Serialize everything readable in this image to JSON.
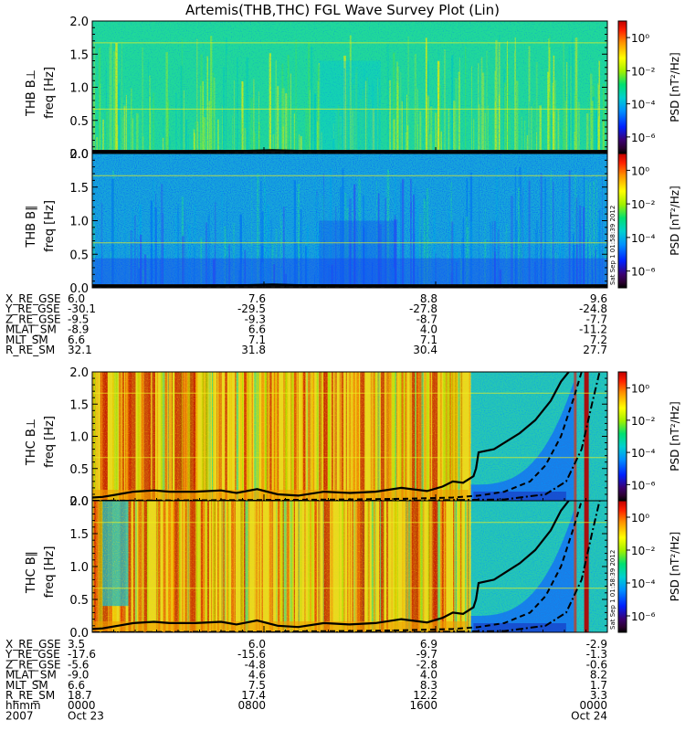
{
  "chart_data": {
    "type": "spectrogram",
    "title": "Artemis(THB,THC) FGL Wave Survey Plot (Lin)",
    "stamp": "Sat Sep  1 01:58:39 2012",
    "panels": [
      {
        "id": "thb-bperp",
        "label": "THB B⊥",
        "ylabel": "freq [Hz]",
        "ylim": [
          0,
          2.0
        ],
        "yticks": [
          "0.0",
          "0.5",
          "1.0",
          "1.5",
          "2.0"
        ],
        "cblabel": "PSD [nT²/Hz]",
        "cbticks": [
          "10⁰",
          "10⁻²",
          "10⁻⁴",
          "10⁻⁶"
        ],
        "cbrange": [
          -7,
          1
        ],
        "style": "thb",
        "gridfreqs": [
          0.67,
          1.67
        ]
      },
      {
        "id": "thb-bpar",
        "label": "THB B∥",
        "ylabel": "freq [Hz]",
        "ylim": [
          0,
          2.0
        ],
        "yticks": [
          "0.0",
          "0.5",
          "1.0",
          "1.5",
          "2.0"
        ],
        "cblabel": "PSD [nT²/Hz]",
        "cbticks": [
          "10⁰",
          "10⁻²",
          "10⁻⁴",
          "10⁻⁶"
        ],
        "cbrange": [
          -7,
          1
        ],
        "style": "thb2",
        "gridfreqs": [
          0.67,
          1.67
        ]
      },
      {
        "id": "thc-bperp",
        "label": "THC B⊥",
        "ylabel": "freq [Hz]",
        "ylim": [
          0,
          2.0
        ],
        "yticks": [
          "0.0",
          "0.5",
          "1.0",
          "1.5",
          "2.0"
        ],
        "cblabel": "PSD [nT²/Hz]",
        "cbticks": [
          "10⁰",
          "10⁻²",
          "10⁻⁴",
          "10⁻⁶"
        ],
        "cbrange": [
          -7,
          1
        ],
        "style": "thc",
        "gridfreqs": [
          0.67,
          1.67
        ]
      },
      {
        "id": "thc-bpar",
        "label": "THC B∥",
        "ylabel": "freq [Hz]",
        "ylim": [
          0,
          2.0
        ],
        "yticks": [
          "0.0",
          "0.5",
          "1.0",
          "1.5",
          "2.0"
        ],
        "cblabel": "PSD [nT²/Hz]",
        "cbticks": [
          "10⁰",
          "10⁻²",
          "10⁻⁴",
          "10⁻⁶"
        ],
        "cbrange": [
          -7,
          1
        ],
        "style": "thc2",
        "gridfreqs": [
          0.67,
          1.67
        ]
      }
    ],
    "thb_lines": {
      "solid": [
        [
          0,
          0.03
        ],
        [
          0.1,
          0.02
        ],
        [
          0.2,
          0.03
        ],
        [
          0.3,
          0.04
        ],
        [
          0.35,
          0.05
        ],
        [
          0.4,
          0.04
        ],
        [
          0.5,
          0.03
        ],
        [
          0.6,
          0.03
        ],
        [
          0.7,
          0.02
        ],
        [
          0.8,
          0.03
        ],
        [
          0.9,
          0.02
        ],
        [
          1.0,
          0.03
        ]
      ],
      "dashed": [
        [
          0,
          0.0
        ],
        [
          0.3,
          0.005
        ],
        [
          0.6,
          0.005
        ],
        [
          1.0,
          0.0
        ]
      ]
    },
    "thc_lines": {
      "solid": [
        [
          0.0,
          0.05
        ],
        [
          0.02,
          0.06
        ],
        [
          0.05,
          0.1
        ],
        [
          0.08,
          0.14
        ],
        [
          0.12,
          0.16
        ],
        [
          0.15,
          0.14
        ],
        [
          0.2,
          0.14
        ],
        [
          0.25,
          0.16
        ],
        [
          0.28,
          0.12
        ],
        [
          0.32,
          0.18
        ],
        [
          0.36,
          0.1
        ],
        [
          0.4,
          0.08
        ],
        [
          0.45,
          0.14
        ],
        [
          0.5,
          0.12
        ],
        [
          0.55,
          0.14
        ],
        [
          0.6,
          0.2
        ],
        [
          0.65,
          0.15
        ],
        [
          0.68,
          0.22
        ],
        [
          0.7,
          0.3
        ],
        [
          0.72,
          0.28
        ],
        [
          0.74,
          0.38
        ],
        [
          0.745,
          0.5
        ],
        [
          0.75,
          0.75
        ],
        [
          0.78,
          0.8
        ],
        [
          0.8,
          0.9
        ],
        [
          0.83,
          1.05
        ],
        [
          0.86,
          1.25
        ],
        [
          0.89,
          1.55
        ],
        [
          0.91,
          1.85
        ],
        [
          0.925,
          2.0
        ]
      ],
      "dashed": [
        [
          0.0,
          0.0
        ],
        [
          0.3,
          0.01
        ],
        [
          0.5,
          0.02
        ],
        [
          0.6,
          0.03
        ],
        [
          0.7,
          0.05
        ],
        [
          0.75,
          0.08
        ],
        [
          0.8,
          0.14
        ],
        [
          0.85,
          0.3
        ],
        [
          0.88,
          0.55
        ],
        [
          0.91,
          1.0
        ],
        [
          0.935,
          1.6
        ],
        [
          0.95,
          2.0
        ]
      ],
      "dashdot": [
        [
          0.0,
          0.0
        ],
        [
          0.6,
          0.0
        ],
        [
          0.8,
          0.02
        ],
        [
          0.88,
          0.1
        ],
        [
          0.92,
          0.3
        ],
        [
          0.95,
          0.8
        ],
        [
          0.97,
          1.5
        ],
        [
          0.985,
          2.0
        ]
      ]
    },
    "ephem_thb": {
      "labels": [
        "X_RE_GSE",
        "Y_RE_GSE",
        "Z_RE_GSE",
        "MLAT_SM",
        "MLT_SM",
        "R_RE_SM"
      ],
      "columns": [
        [
          "6.0",
          "-30.1",
          "-9.5",
          "-8.9",
          "6.6",
          "32.1"
        ],
        [
          "7.6",
          "-29.5",
          "-9.3",
          "6.6",
          "7.1",
          "31.8"
        ],
        [
          "8.8",
          "-27.8",
          "-8.7",
          "4.0",
          "7.1",
          "30.4"
        ],
        [
          "9.6",
          "-24.8",
          "-7.7",
          "-11.2",
          "7.2",
          "27.7"
        ]
      ]
    },
    "ephem_thc": {
      "labels": [
        "X_RE_GSE",
        "Y_RE_GSE",
        "Z_RE_GSE",
        "MLAT_SM",
        "MLT_SM",
        "R_RE_SM",
        "hhmm",
        "2007"
      ],
      "columns": [
        [
          "3.5",
          "-17.6",
          "-5.6",
          "-9.0",
          "6.6",
          "18.7",
          "0000",
          "Oct 23"
        ],
        [
          "6.0",
          "-15.6",
          "-4.8",
          "4.6",
          "7.5",
          "17.4",
          "0800",
          ""
        ],
        [
          "6.9",
          "-9.7",
          "-2.8",
          "4.0",
          "8.3",
          "12.2",
          "1600",
          ""
        ],
        [
          "-2.9",
          "-1.3",
          "-0.6",
          "8.2",
          "1.7",
          "3.3",
          "0000",
          "Oct 24"
        ]
      ]
    }
  }
}
